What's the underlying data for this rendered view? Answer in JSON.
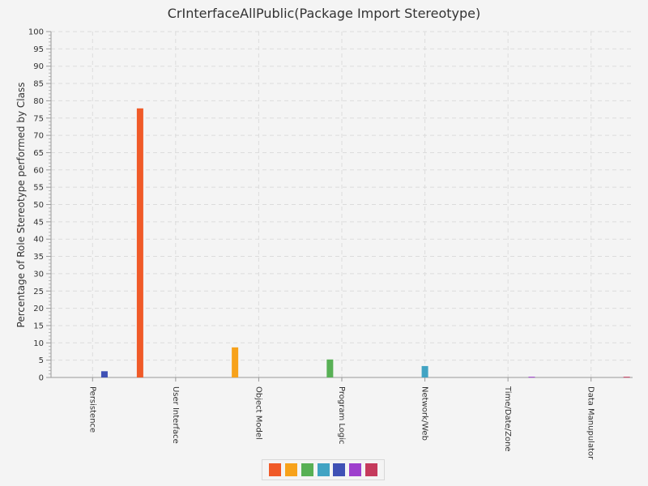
{
  "chart_data": {
    "type": "bar",
    "title": "CrInterfaceAllPublic(Package Import Stereotype)",
    "xlabel": "",
    "ylabel": "Percentage of Role Stereotype performed by Class",
    "ylim": [
      0,
      100
    ],
    "yticks": [
      0,
      5,
      10,
      15,
      20,
      25,
      30,
      35,
      40,
      45,
      50,
      55,
      60,
      65,
      70,
      75,
      80,
      85,
      90,
      95,
      100
    ],
    "grid": true,
    "legend_position": "bottom",
    "categories": [
      "Persistence",
      "User Interface",
      "Object Model",
      "Program Logic",
      "Network/Web",
      "Time/Date/Zone",
      "Data Manupulator"
    ],
    "series": [
      {
        "color": "#f05a28",
        "values": [
          0,
          77.8,
          0,
          0,
          0,
          0,
          0
        ]
      },
      {
        "color": "#f7a21b",
        "values": [
          0,
          0,
          8.7,
          0,
          0,
          0,
          0
        ]
      },
      {
        "color": "#58b055",
        "values": [
          0,
          0,
          0,
          5.2,
          0,
          0,
          0
        ]
      },
      {
        "color": "#41a3c3",
        "values": [
          0,
          0,
          0,
          0,
          3.3,
          0,
          0
        ]
      },
      {
        "color": "#3f51b5",
        "values": [
          1.8,
          0,
          0,
          0,
          0,
          0,
          0
        ]
      },
      {
        "color": "#9e3fcd",
        "values": [
          0,
          0,
          0,
          0,
          0,
          0.2,
          0
        ]
      },
      {
        "color": "#c53a5c",
        "values": [
          0,
          0,
          0,
          0,
          0,
          0,
          0.2
        ]
      }
    ]
  }
}
